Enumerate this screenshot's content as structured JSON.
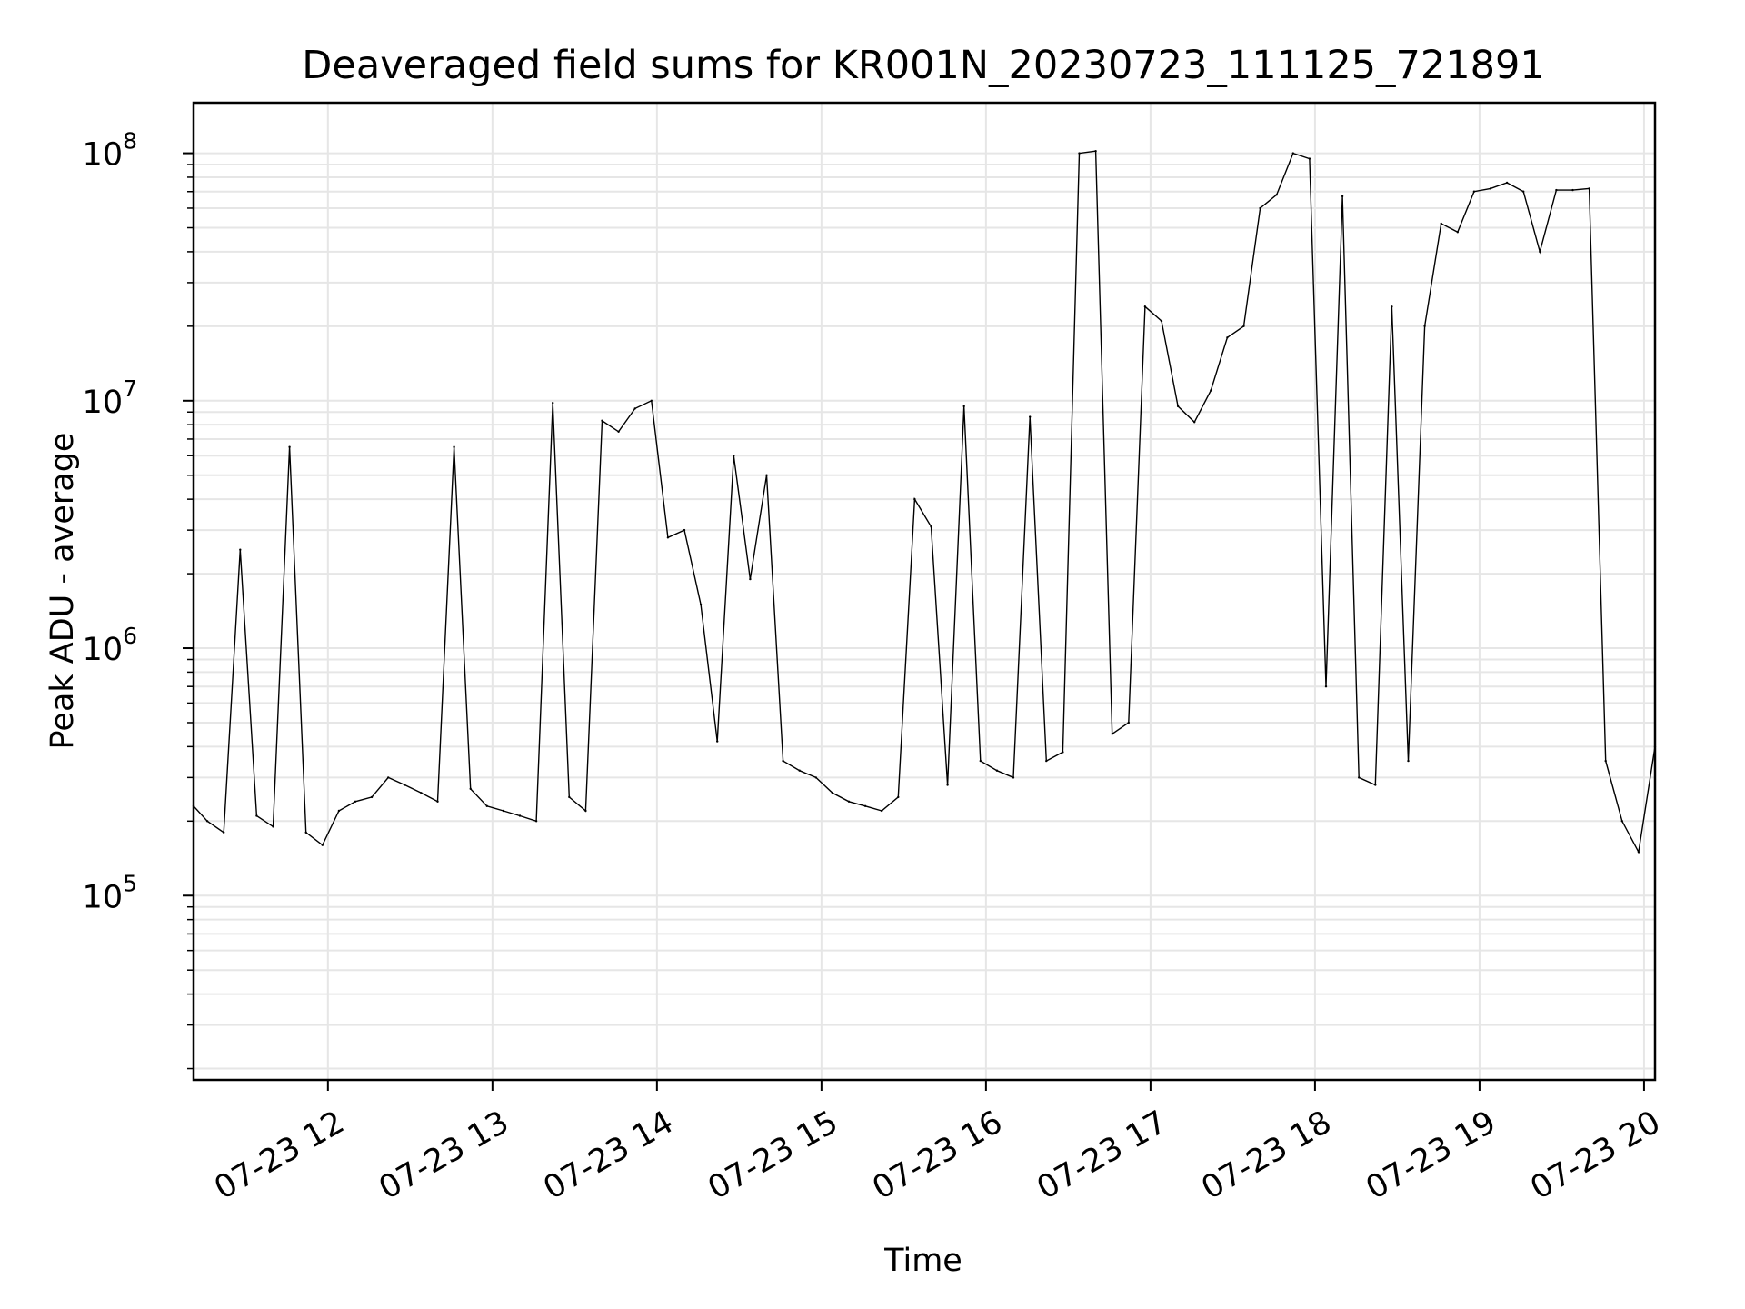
{
  "chart_data": {
    "type": "line",
    "title": "Deaveraged field sums for KR001N_20230723_111125_721891",
    "xlabel": "Time",
    "ylabel": "Peak ADU - average",
    "y_scale": "log",
    "ylim": [
      18000,
      160000000
    ],
    "xlim": [
      "2023-07-23 11:11",
      "2023-07-23 20:04"
    ],
    "grid": true,
    "legend": "none",
    "line_color": "#000000",
    "x_ticks": [
      {
        "value": "2023-07-23 12:00",
        "label": "07-23 12"
      },
      {
        "value": "2023-07-23 13:00",
        "label": "07-23 13"
      },
      {
        "value": "2023-07-23 14:00",
        "label": "07-23 14"
      },
      {
        "value": "2023-07-23 15:00",
        "label": "07-23 15"
      },
      {
        "value": "2023-07-23 16:00",
        "label": "07-23 16"
      },
      {
        "value": "2023-07-23 17:00",
        "label": "07-23 17"
      },
      {
        "value": "2023-07-23 18:00",
        "label": "07-23 18"
      },
      {
        "value": "2023-07-23 19:00",
        "label": "07-23 19"
      },
      {
        "value": "2023-07-23 20:00",
        "label": "07-23 20"
      }
    ],
    "y_ticks": [
      {
        "value": 100000,
        "base": "10",
        "exp": "5"
      },
      {
        "value": 1000000,
        "base": "10",
        "exp": "6"
      },
      {
        "value": 10000000,
        "base": "10",
        "exp": "7"
      },
      {
        "value": 100000000,
        "base": "10",
        "exp": "8"
      }
    ],
    "series": [
      {
        "x": [
          "2023-07-23 11:11",
          "2023-07-23 11:16",
          "2023-07-23 11:22",
          "2023-07-23 11:28",
          "2023-07-23 11:34",
          "2023-07-23 11:40",
          "2023-07-23 11:46",
          "2023-07-23 11:52",
          "2023-07-23 11:58",
          "2023-07-23 12:04",
          "2023-07-23 12:10",
          "2023-07-23 12:16",
          "2023-07-23 12:22",
          "2023-07-23 12:28",
          "2023-07-23 12:34",
          "2023-07-23 12:40",
          "2023-07-23 12:46",
          "2023-07-23 12:52",
          "2023-07-23 12:58",
          "2023-07-23 13:04",
          "2023-07-23 13:10",
          "2023-07-23 13:16",
          "2023-07-23 13:22",
          "2023-07-23 13:28",
          "2023-07-23 13:34",
          "2023-07-23 13:40",
          "2023-07-23 13:46",
          "2023-07-23 13:52",
          "2023-07-23 13:58",
          "2023-07-23 14:04",
          "2023-07-23 14:10",
          "2023-07-23 14:16",
          "2023-07-23 14:22",
          "2023-07-23 14:28",
          "2023-07-23 14:34",
          "2023-07-23 14:40",
          "2023-07-23 14:46",
          "2023-07-23 14:52",
          "2023-07-23 14:58",
          "2023-07-23 15:04",
          "2023-07-23 15:10",
          "2023-07-23 15:16",
          "2023-07-23 15:22",
          "2023-07-23 15:28",
          "2023-07-23 15:34",
          "2023-07-23 15:40",
          "2023-07-23 15:46",
          "2023-07-23 15:52",
          "2023-07-23 15:58",
          "2023-07-23 16:04",
          "2023-07-23 16:10",
          "2023-07-23 16:16",
          "2023-07-23 16:22",
          "2023-07-23 16:28",
          "2023-07-23 16:34",
          "2023-07-23 16:40",
          "2023-07-23 16:46",
          "2023-07-23 16:52",
          "2023-07-23 16:58",
          "2023-07-23 17:04",
          "2023-07-23 17:10",
          "2023-07-23 17:16",
          "2023-07-23 17:22",
          "2023-07-23 17:28",
          "2023-07-23 17:34",
          "2023-07-23 17:40",
          "2023-07-23 17:46",
          "2023-07-23 17:52",
          "2023-07-23 17:58",
          "2023-07-23 18:04",
          "2023-07-23 18:10",
          "2023-07-23 18:16",
          "2023-07-23 18:22",
          "2023-07-23 18:28",
          "2023-07-23 18:34",
          "2023-07-23 18:40",
          "2023-07-23 18:46",
          "2023-07-23 18:52",
          "2023-07-23 18:58",
          "2023-07-23 19:04",
          "2023-07-23 19:10",
          "2023-07-23 19:16",
          "2023-07-23 19:22",
          "2023-07-23 19:28",
          "2023-07-23 19:34",
          "2023-07-23 19:40",
          "2023-07-23 19:46",
          "2023-07-23 19:52",
          "2023-07-23 19:58",
          "2023-07-23 20:04"
        ],
        "values": [
          230000,
          200000,
          180000,
          2500000,
          210000,
          190000,
          6500000,
          180000,
          160000,
          220000,
          240000,
          250000,
          300000,
          280000,
          260000,
          240000,
          6500000,
          270000,
          230000,
          220000,
          210000,
          200000,
          9800000,
          250000,
          220000,
          8300000,
          7500000,
          9300000,
          10000000,
          2800000,
          3000000,
          1500000,
          420000,
          6000000,
          1900000,
          5000000,
          350000,
          320000,
          300000,
          260000,
          240000,
          230000,
          220000,
          250000,
          4000000,
          3100000,
          280000,
          9500000,
          350000,
          320000,
          300000,
          8600000,
          350000,
          380000,
          100000000,
          102000000,
          450000,
          500000,
          24000000,
          21000000,
          9500000,
          8200000,
          11000000,
          18000000,
          20000000,
          60000000,
          68000000,
          100000000,
          95000000,
          700000,
          67000000,
          300000,
          280000,
          24000000,
          350000,
          20000000,
          52000000,
          48000000,
          70000000,
          72000000,
          76000000,
          70000000,
          40000000,
          71000000,
          71000000,
          72000000,
          350000,
          200000,
          150000,
          400000
        ]
      }
    ]
  }
}
